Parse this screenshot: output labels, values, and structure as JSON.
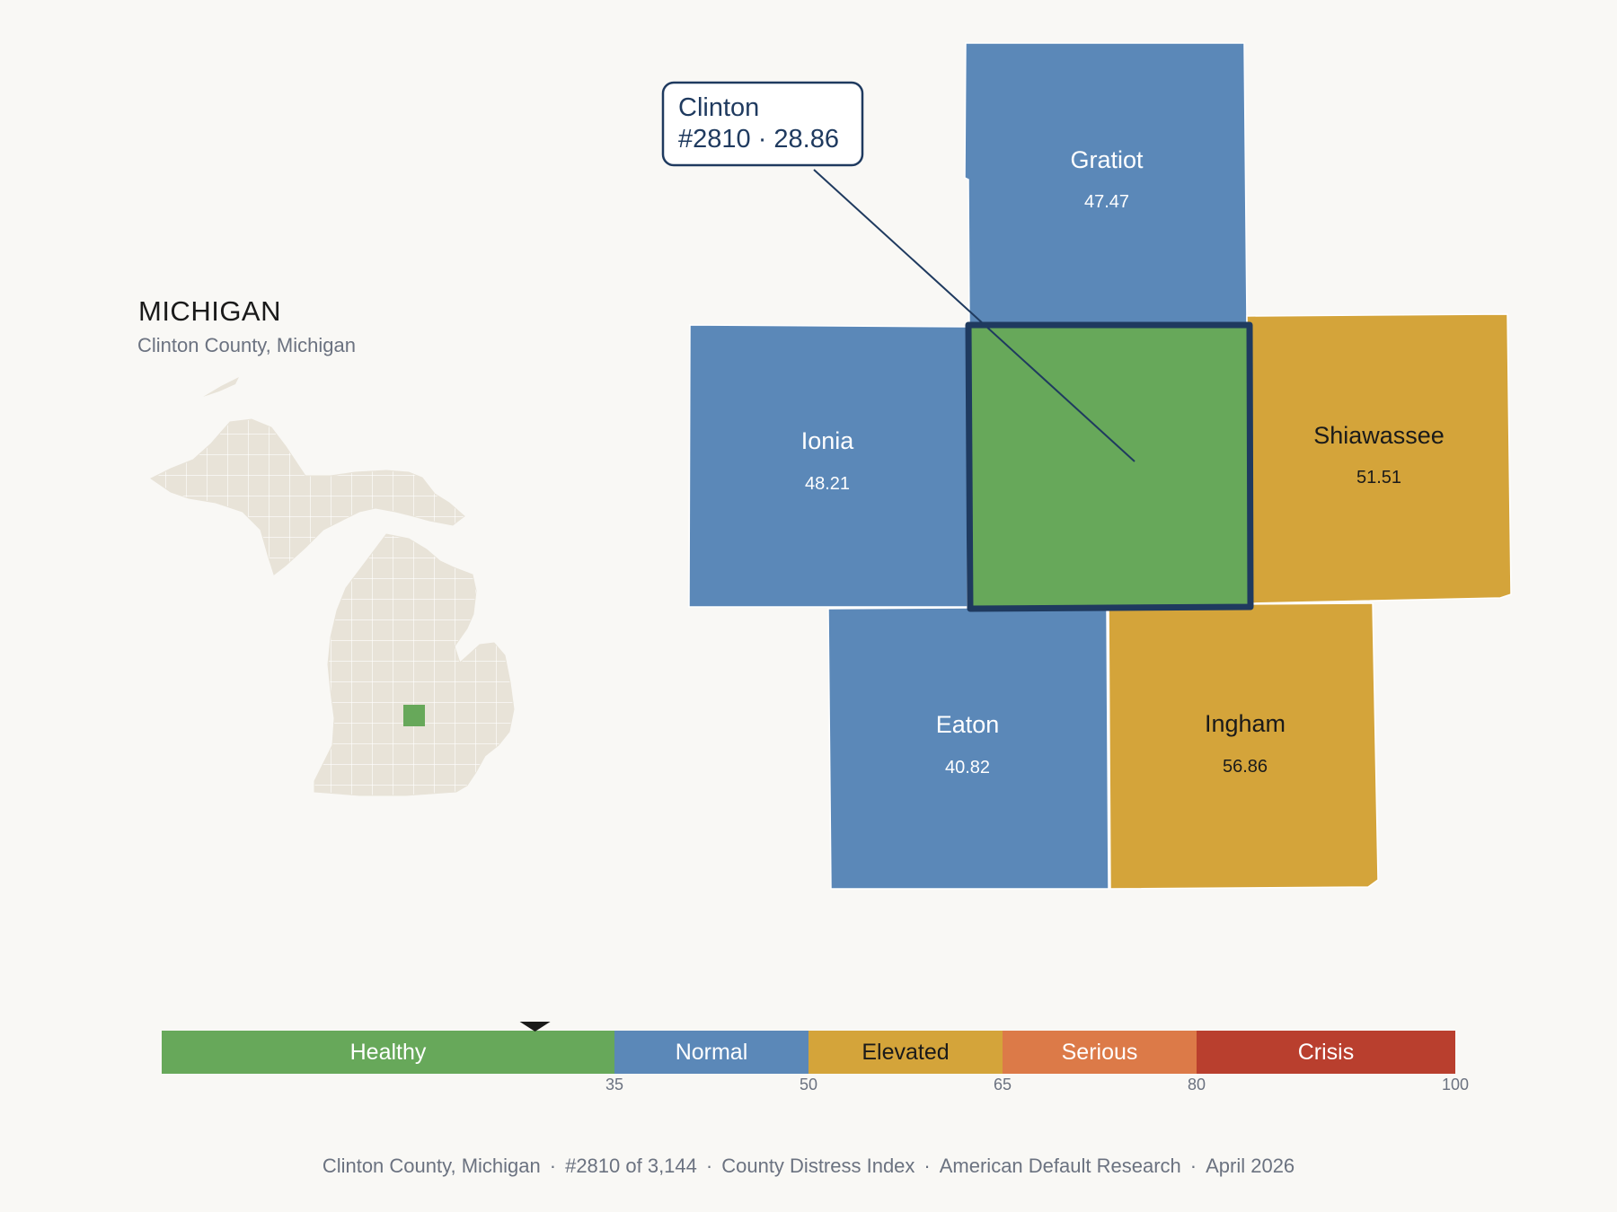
{
  "header": {
    "state": "MICHIGAN",
    "subtitle": "Clinton County, Michigan"
  },
  "callout": {
    "name": "Clinton",
    "detail": "#2810 · 28.86"
  },
  "counties": [
    {
      "id": "gratiot",
      "name": "Gratiot",
      "value": "47.47",
      "category": "Normal",
      "fill": "#5b88b8",
      "text_color": "#ffffff"
    },
    {
      "id": "ionia",
      "name": "Ionia",
      "value": "48.21",
      "category": "Normal",
      "fill": "#5b88b8",
      "text_color": "#ffffff"
    },
    {
      "id": "shiawassee",
      "name": "Shiawassee",
      "value": "51.51",
      "category": "Elevated",
      "fill": "#d4a43a",
      "text_color": "#1a1a1a"
    },
    {
      "id": "eaton",
      "name": "Eaton",
      "value": "40.82",
      "category": "Normal",
      "fill": "#5b88b8",
      "text_color": "#ffffff"
    },
    {
      "id": "ingham",
      "name": "Ingham",
      "value": "56.86",
      "category": "Elevated",
      "fill": "#d4a43a",
      "text_color": "#1a1a1a"
    }
  ],
  "focus_county": {
    "name": "Clinton",
    "value": 28.86,
    "rank": 2810,
    "fill": "#67a85a",
    "outline": "#1f3a5f"
  },
  "scale": {
    "domain": [
      0,
      100
    ],
    "marker_value": 28.86,
    "bands": [
      {
        "label": "Healthy",
        "from": 0,
        "to": 35,
        "color": "#67a85a",
        "text_color": "#ffffff"
      },
      {
        "label": "Normal",
        "from": 35,
        "to": 50,
        "color": "#5b88b8",
        "text_color": "#ffffff"
      },
      {
        "label": "Elevated",
        "from": 50,
        "to": 65,
        "color": "#d4a43a",
        "text_color": "#1a1a1a"
      },
      {
        "label": "Serious",
        "from": 65,
        "to": 80,
        "color": "#dc7a48",
        "text_color": "#ffffff"
      },
      {
        "label": "Crisis",
        "from": 80,
        "to": 100,
        "color": "#b93f2e",
        "text_color": "#ffffff"
      }
    ],
    "ticks": [
      "35",
      "50",
      "65",
      "80",
      "100"
    ]
  },
  "footer": {
    "county": "Clinton County, Michigan",
    "rank": "#2810 of 3,144",
    "index": "County Distress Index",
    "source": "American Default Research",
    "date": "April 2026"
  },
  "colors": {
    "background": "#f9f8f5",
    "state_fill": "#e8e3d8",
    "highlight": "#67a85a"
  }
}
